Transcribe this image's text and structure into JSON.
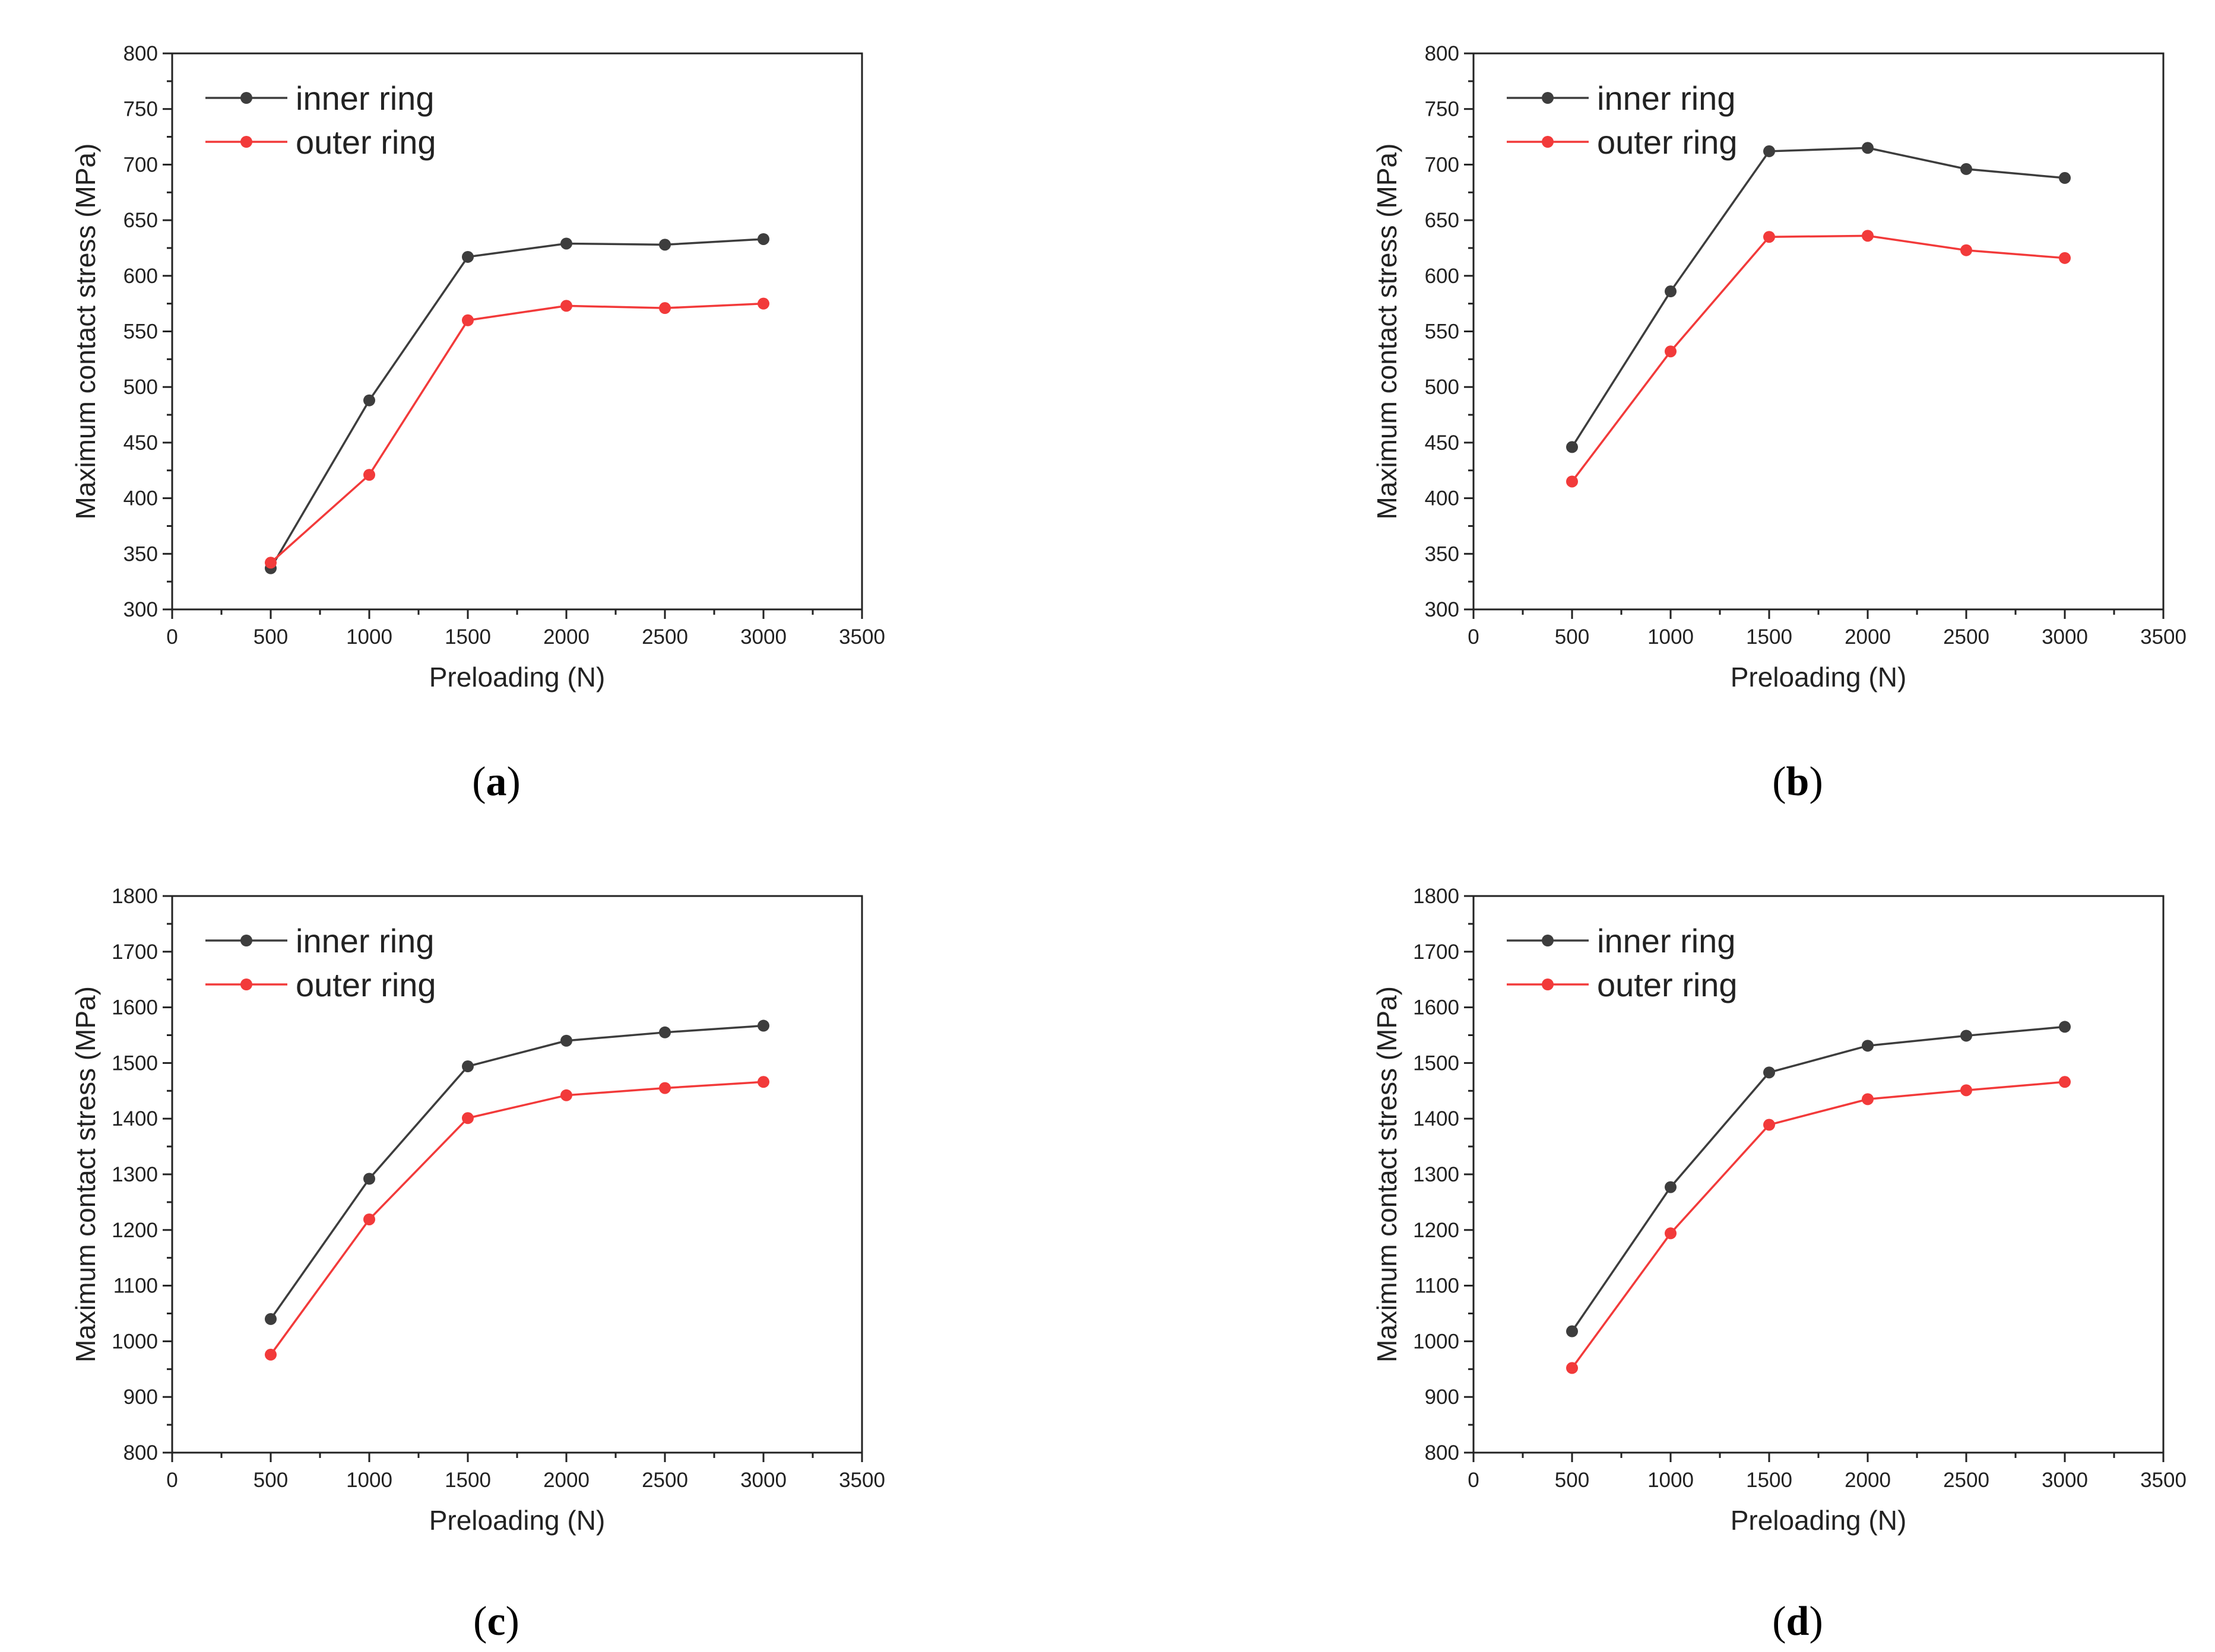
{
  "chart_data": [
    {
      "type": "line",
      "caption_letter": "a",
      "xlabel": "Preloading (N)",
      "ylabel": "Maximum contact stress (MPa)",
      "xlim": [
        0,
        3500
      ],
      "ylim": [
        300,
        800
      ],
      "xticks": [
        0,
        500,
        1000,
        1500,
        2000,
        2500,
        3000,
        3500
      ],
      "yticks": [
        300,
        350,
        400,
        450,
        500,
        550,
        600,
        650,
        700,
        750,
        800
      ],
      "x": [
        500,
        1000,
        1500,
        2000,
        2500,
        3000
      ],
      "legend_position": "top-left",
      "series": [
        {
          "name": "inner ring",
          "color": "#3d3d3d",
          "values": [
            337,
            488,
            617,
            629,
            628,
            633
          ]
        },
        {
          "name": "outer ring",
          "color": "#f23a3a",
          "values": [
            342,
            421,
            560,
            573,
            571,
            575
          ]
        }
      ]
    },
    {
      "type": "line",
      "caption_letter": "b",
      "xlabel": "Preloading (N)",
      "ylabel": "Maximum contact stress (MPa)",
      "xlim": [
        0,
        3500
      ],
      "ylim": [
        300,
        800
      ],
      "xticks": [
        0,
        500,
        1000,
        1500,
        2000,
        2500,
        3000,
        3500
      ],
      "yticks": [
        300,
        350,
        400,
        450,
        500,
        550,
        600,
        650,
        700,
        750,
        800
      ],
      "x": [
        500,
        1000,
        1500,
        2000,
        2500,
        3000
      ],
      "legend_position": "top-left",
      "series": [
        {
          "name": "inner ring",
          "color": "#3d3d3d",
          "values": [
            446,
            586,
            712,
            715,
            696,
            688
          ]
        },
        {
          "name": "outer ring",
          "color": "#f23a3a",
          "values": [
            415,
            532,
            635,
            636,
            623,
            616
          ]
        }
      ]
    },
    {
      "type": "line",
      "caption_letter": "c",
      "xlabel": "Preloading (N)",
      "ylabel": "Maximum contact stress (MPa)",
      "xlim": [
        0,
        3500
      ],
      "ylim": [
        800,
        1800
      ],
      "xticks": [
        0,
        500,
        1000,
        1500,
        2000,
        2500,
        3000,
        3500
      ],
      "yticks": [
        800,
        900,
        1000,
        1100,
        1200,
        1300,
        1400,
        1500,
        1600,
        1700,
        1800
      ],
      "x": [
        500,
        1000,
        1500,
        2000,
        2500,
        3000
      ],
      "legend_position": "top-left",
      "series": [
        {
          "name": "inner ring",
          "color": "#3d3d3d",
          "values": [
            1040,
            1292,
            1494,
            1540,
            1555,
            1567
          ]
        },
        {
          "name": "outer ring",
          "color": "#f23a3a",
          "values": [
            976,
            1219,
            1401,
            1442,
            1455,
            1466
          ]
        }
      ]
    },
    {
      "type": "line",
      "caption_letter": "d",
      "xlabel": "Preloading (N)",
      "ylabel": "Maximum contact stress (MPa)",
      "xlim": [
        0,
        3500
      ],
      "ylim": [
        800,
        1800
      ],
      "xticks": [
        0,
        500,
        1000,
        1500,
        2000,
        2500,
        3000,
        3500
      ],
      "yticks": [
        800,
        900,
        1000,
        1100,
        1200,
        1300,
        1400,
        1500,
        1600,
        1700,
        1800
      ],
      "x": [
        500,
        1000,
        1500,
        2000,
        2500,
        3000
      ],
      "legend_position": "top-left",
      "series": [
        {
          "name": "inner ring",
          "color": "#3d3d3d",
          "values": [
            1018,
            1277,
            1483,
            1531,
            1549,
            1565
          ]
        },
        {
          "name": "outer ring",
          "color": "#f23a3a",
          "values": [
            952,
            1194,
            1389,
            1435,
            1451,
            1466
          ]
        }
      ]
    }
  ]
}
